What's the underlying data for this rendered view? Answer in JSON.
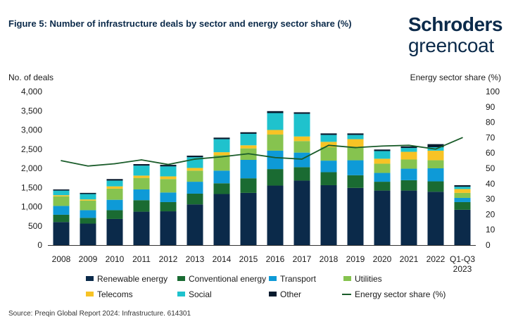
{
  "title": "Figure 5: Number of infrastructure deals by sector and energy sector share (%)",
  "logo": {
    "line1": "Schroders",
    "line2": "greencoat"
  },
  "source": "Source: Preqin Global Report 2024: Infrastructure. 614301",
  "chart_data": {
    "type": "bar",
    "stacked": true,
    "categories": [
      "2008",
      "2009",
      "2010",
      "2011",
      "2012",
      "2013",
      "2014",
      "2015",
      "2016",
      "2017",
      "2018",
      "2019",
      "2020",
      "2021",
      "2022",
      "Q1-Q3 2023"
    ],
    "ylabel": "No. of deals",
    "y2label": "Energy sector share (%)",
    "ylim": [
      0,
      4000
    ],
    "y2lim": [
      0,
      100
    ],
    "yticks": [
      "0",
      "500",
      "1,000",
      "1,500",
      "2,000",
      "2,500",
      "3,000",
      "3,500",
      "4,000"
    ],
    "y2ticks": [
      "0",
      "10",
      "20",
      "30",
      "40",
      "50",
      "60",
      "70",
      "80",
      "90",
      "100"
    ],
    "grid": false,
    "legend_placement": "bottom",
    "series": [
      {
        "name": "Renewable energy",
        "color": "#0b2a4a",
        "values": [
          600,
          560,
          680,
          870,
          880,
          1060,
          1330,
          1360,
          1550,
          1680,
          1560,
          1490,
          1420,
          1420,
          1390,
          920
        ]
      },
      {
        "name": "Conventional energy",
        "color": "#1a6b32",
        "values": [
          190,
          150,
          230,
          300,
          240,
          280,
          280,
          380,
          430,
          350,
          340,
          330,
          230,
          270,
          270,
          200
        ]
      },
      {
        "name": "Transport",
        "color": "#0e9ad7",
        "values": [
          230,
          200,
          270,
          280,
          250,
          310,
          330,
          480,
          480,
          380,
          300,
          390,
          230,
          300,
          340,
          110
        ]
      },
      {
        "name": "Utilities",
        "color": "#86c34f",
        "values": [
          250,
          250,
          290,
          300,
          350,
          290,
          400,
          300,
          420,
          300,
          350,
          330,
          240,
          240,
          210,
          130
        ]
      },
      {
        "name": "Telecoms",
        "color": "#f7c325",
        "values": [
          30,
          30,
          60,
          60,
          70,
          70,
          80,
          80,
          120,
          120,
          140,
          220,
          130,
          200,
          250,
          100
        ]
      },
      {
        "name": "Social",
        "color": "#1fc2cd",
        "values": [
          120,
          140,
          150,
          260,
          260,
          280,
          340,
          300,
          440,
          590,
          180,
          110,
          200,
          100,
          90,
          60
        ]
      },
      {
        "name": "Other",
        "color": "#071a2e",
        "values": [
          30,
          30,
          40,
          40,
          40,
          40,
          40,
          40,
          50,
          40,
          40,
          40,
          40,
          40,
          80,
          40
        ]
      }
    ],
    "line": {
      "name": "Energy sector share (%)",
      "color": "#1a5c2a",
      "axis": "right",
      "values": [
        55,
        51.5,
        53,
        55.5,
        52.5,
        56,
        57.5,
        59.5,
        57,
        56,
        65,
        63.5,
        64.5,
        65,
        62.5,
        70
      ]
    }
  }
}
